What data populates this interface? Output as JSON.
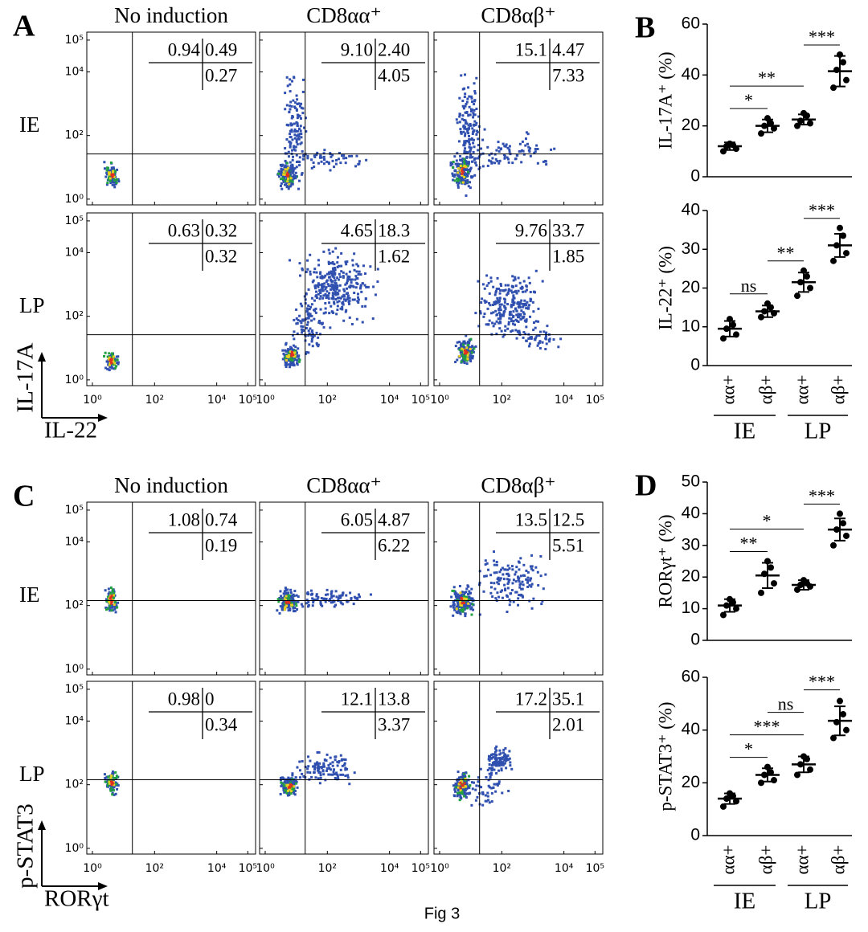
{
  "figure_label": "Fig 3",
  "flow": [
    {
      "panel_label": "A",
      "columns": [
        "No induction",
        "CD8αα⁺",
        "CD8αβ⁺"
      ],
      "y_axis_label": "IL-17A",
      "x_axis_label": "IL-22",
      "lim": [
        0.66,
        178000
      ],
      "ticks": [
        {
          "value": 1,
          "label": "10⁰"
        },
        {
          "value": 100,
          "label": "10²"
        },
        {
          "value": 10000,
          "label": "10⁴"
        },
        {
          "value": 100000,
          "label": "10⁵"
        }
      ],
      "rows": [
        {
          "label": "IE",
          "quadrants": [
            [
              "0.94",
              "0.49",
              "0.27"
            ],
            [
              "9.10",
              "2.40",
              "4.05"
            ],
            [
              "15.1",
              "4.47",
              "7.33"
            ]
          ]
        },
        {
          "label": "LP",
          "quadrants": [
            [
              "0.63",
              "0.32",
              "0.32"
            ],
            [
              "4.65",
              "18.3",
              "1.62"
            ],
            [
              "9.76",
              "33.7",
              "1.85"
            ]
          ]
        }
      ]
    },
    {
      "panel_label": "C",
      "columns": [
        "No induction",
        "CD8αα⁺",
        "CD8αβ⁺"
      ],
      "y_axis_label": "p-STAT3",
      "x_axis_label": "RORγt",
      "lim": [
        0.66,
        178000
      ],
      "ticks": [
        {
          "value": 1,
          "label": "10⁰"
        },
        {
          "value": 100,
          "label": "10²"
        },
        {
          "value": 10000,
          "label": "10⁴"
        },
        {
          "value": 100000,
          "label": "10⁵"
        }
      ],
      "rows": [
        {
          "label": "IE",
          "quadrants": [
            [
              "1.08",
              "0.74",
              "0.19"
            ],
            [
              "6.05",
              "4.87",
              "6.22"
            ],
            [
              "13.5",
              "12.5",
              "5.51"
            ]
          ]
        },
        {
          "label": "LP",
          "quadrants": [
            [
              "0.98",
              "0",
              "0.34"
            ],
            [
              "12.1",
              "13.8",
              "3.37"
            ],
            [
              "17.2",
              "35.1",
              "2.01"
            ]
          ]
        }
      ]
    }
  ],
  "chart_data": [
    {
      "type": "dot",
      "panel_label": "B",
      "ylabel": "IL-17A⁺ (%)",
      "categories": [
        null,
        null,
        null,
        null
      ],
      "points": [
        [
          10,
          11,
          12,
          12.5,
          13
        ],
        [
          17,
          19,
          20,
          21,
          23
        ],
        [
          20,
          21,
          22,
          24,
          25
        ],
        [
          35,
          38,
          42,
          45,
          48
        ]
      ],
      "means": [
        12,
        20,
        22.5,
        41.5
      ],
      "sds": [
        1.5,
        2.5,
        2,
        6
      ],
      "ylim": [
        0,
        60
      ],
      "yticks": [
        0,
        20,
        40,
        60
      ],
      "significance": [
        {
          "from": 0,
          "to": 1,
          "label": "*"
        },
        {
          "from": 0,
          "to": 2,
          "label": "**"
        },
        {
          "from": 2,
          "to": 3,
          "label": "***"
        }
      ]
    },
    {
      "type": "dot",
      "ylabel": "IL-22⁺  (%)",
      "categories": [
        "αα+",
        "αβ+",
        "αα+",
        "αβ+"
      ],
      "groups": [
        "IE",
        "LP"
      ],
      "points": [
        [
          7,
          8,
          9.5,
          10.5,
          12
        ],
        [
          12.5,
          13.5,
          14,
          15,
          16
        ],
        [
          18,
          20,
          21.5,
          23,
          24.5
        ],
        [
          27,
          29,
          31,
          33.5,
          35.5
        ]
      ],
      "means": [
        9.5,
        14,
        21.5,
        31
      ],
      "sds": [
        2,
        1.5,
        2.5,
        3
      ],
      "ylim": [
        0,
        40
      ],
      "yticks": [
        0,
        10,
        20,
        30,
        40
      ],
      "significance": [
        {
          "from": 0,
          "to": 1,
          "label": "ns"
        },
        {
          "from": 1,
          "to": 2,
          "label": "**"
        },
        {
          "from": 2,
          "to": 3,
          "label": "***"
        }
      ]
    },
    {
      "type": "dot",
      "panel_label": "D",
      "ylabel": "RORγt⁺ (%)",
      "categories": [
        null,
        null,
        null,
        null
      ],
      "points": [
        [
          8,
          10,
          11,
          12,
          13
        ],
        [
          15,
          18,
          21,
          23,
          25
        ],
        [
          16,
          17,
          17.5,
          18,
          19
        ],
        [
          30,
          33,
          35,
          37,
          40
        ]
      ],
      "means": [
        11,
        20.5,
        17.5,
        35
      ],
      "sds": [
        2,
        4,
        1.5,
        3.5
      ],
      "ylim": [
        0,
        50
      ],
      "yticks": [
        0,
        10,
        20,
        30,
        40,
        50
      ],
      "significance": [
        {
          "from": 0,
          "to": 1,
          "label": "**"
        },
        {
          "from": 0,
          "to": 2,
          "label": "*"
        },
        {
          "from": 2,
          "to": 3,
          "label": "***"
        }
      ]
    },
    {
      "type": "dot",
      "ylabel": "p-STAT3⁺ (%)",
      "categories": [
        "αα+",
        "αβ+",
        "αα+",
        "αβ+"
      ],
      "groups": [
        "IE",
        "LP"
      ],
      "points": [
        [
          11,
          13,
          14,
          15,
          16
        ],
        [
          20,
          21,
          23,
          24,
          26
        ],
        [
          23,
          25,
          27,
          29,
          30
        ],
        [
          37,
          40,
          43,
          46,
          51
        ]
      ],
      "means": [
        14,
        23,
        27,
        43.5
      ],
      "sds": [
        2,
        2.5,
        3,
        5.5
      ],
      "ylim": [
        0,
        60
      ],
      "yticks": [
        0,
        20,
        40,
        60
      ],
      "significance": [
        {
          "from": 0,
          "to": 1,
          "label": "*"
        },
        {
          "from": 0,
          "to": 2,
          "label": "***"
        },
        {
          "from": 1,
          "to": 2,
          "label": "ns"
        },
        {
          "from": 2,
          "to": 3,
          "label": "***"
        }
      ]
    }
  ]
}
